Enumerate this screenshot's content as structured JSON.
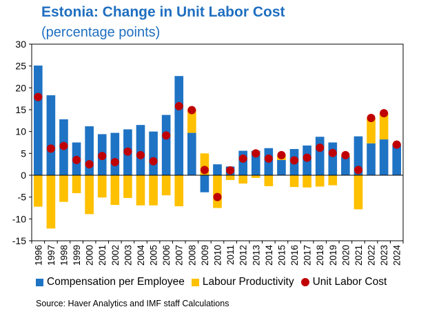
{
  "header": {
    "title": "Estonia: Change in Unit Labor Cost",
    "subtitle": "(percentage points)"
  },
  "legend": {
    "compensation": "Compensation per Employee",
    "productivity": "Labour Productivity",
    "ulc": "Unit Labor Cost"
  },
  "footer": {
    "source": "Source: Haver Analytics and IMF staff Calculations"
  },
  "colors": {
    "compensation": "#1f73c4",
    "productivity": "#ffc000",
    "ulc": "#c00000"
  },
  "chart_data": {
    "type": "bar",
    "stacked": true,
    "title": "Estonia: Change in Unit Labor Cost",
    "subtitle": "(percentage points)",
    "xlabel": "",
    "ylabel": "",
    "ylim": [
      -15,
      30
    ],
    "yticks": [
      -15,
      -10,
      -5,
      0,
      5,
      10,
      15,
      20,
      25,
      30
    ],
    "grid": false,
    "legend_position": "bottom",
    "categories": [
      "1996",
      "1997",
      "1998",
      "1999",
      "2000",
      "2001",
      "2002",
      "2003",
      "2004",
      "2005",
      "2006",
      "2007",
      "2008",
      "2009",
      "2010",
      "2011",
      "2012",
      "2013",
      "2014",
      "2015",
      "2016",
      "2017",
      "2018",
      "2019",
      "2020",
      "2021",
      "2022",
      "2023",
      "2024"
    ],
    "series": [
      {
        "name": "Compensation per Employee",
        "kind": "bar",
        "values": [
          25.1,
          18.3,
          12.8,
          7.5,
          11.2,
          9.4,
          9.7,
          10.5,
          11.5,
          10.0,
          13.8,
          22.7,
          9.7,
          -3.9,
          2.5,
          2.0,
          5.6,
          5.6,
          6.2,
          3.5,
          6.0,
          6.8,
          8.8,
          7.5,
          4.2,
          8.9,
          7.3,
          8.2,
          7.0
        ]
      },
      {
        "name": "Labour Productivity",
        "kind": "bar",
        "values": [
          -7.2,
          -12.2,
          -6.1,
          -4.1,
          -8.9,
          -5.1,
          -6.8,
          -5.2,
          -6.9,
          -6.9,
          -4.6,
          -7.1,
          5.4,
          5.0,
          -7.5,
          -1.1,
          -1.9,
          -0.6,
          -2.5,
          1.1,
          -2.7,
          -2.8,
          -2.6,
          -2.3,
          0.3,
          -7.8,
          5.8,
          6.0,
          0.2
        ]
      },
      {
        "name": "Unit Labor Cost",
        "kind": "point",
        "values": [
          17.9,
          6.1,
          6.7,
          3.5,
          2.5,
          4.4,
          3.0,
          5.4,
          4.6,
          3.2,
          9.1,
          15.8,
          14.9,
          1.2,
          -5.0,
          1.1,
          3.8,
          5.0,
          3.8,
          4.6,
          3.4,
          4.0,
          6.3,
          5.1,
          4.6,
          1.2,
          13.1,
          14.2,
          7.0
        ]
      }
    ]
  }
}
